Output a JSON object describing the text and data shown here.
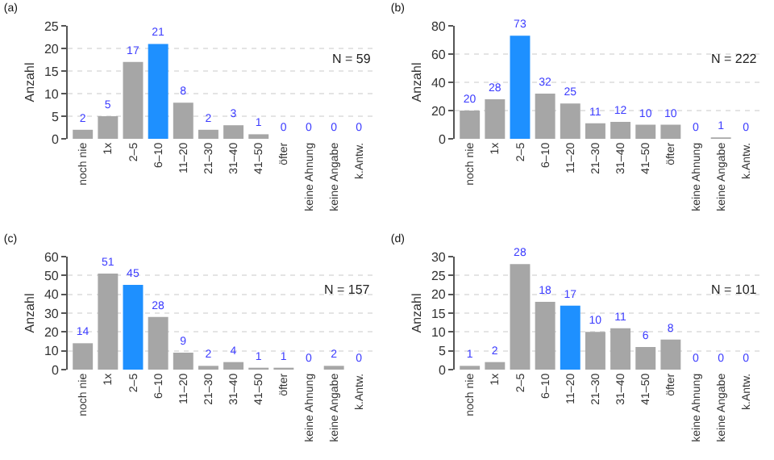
{
  "chart_data": [
    {
      "type": "bar",
      "title": "(a)",
      "ylabel": "Anzahl",
      "categories": [
        "noch nie",
        "1x",
        "2–5",
        "6–10",
        "11–20",
        "21–30",
        "31–40",
        "41–50",
        "öfter",
        "keine Ahnung",
        "keine Angabe",
        "k.Antw."
      ],
      "values": [
        2,
        5,
        17,
        21,
        8,
        2,
        3,
        1,
        0,
        0,
        0,
        0
      ],
      "colors": [
        "#a6a6a6",
        "#a6a6a6",
        "#a6a6a6",
        "#1e90ff",
        "#a6a6a6",
        "#a6a6a6",
        "#a6a6a6",
        "#a6a6a6",
        "#a6a6a6",
        "#a6a6a6",
        "#a6a6a6",
        "#a6a6a6"
      ],
      "ylim": [
        0,
        25
      ],
      "yticks": [
        0,
        5,
        10,
        15,
        20,
        25
      ],
      "grid": "y",
      "data_labels": true,
      "annotations": [
        "N = 59"
      ]
    },
    {
      "type": "bar",
      "title": "(b)",
      "ylabel": "Anzahl",
      "categories": [
        "noch nie",
        "1x",
        "2–5",
        "6–10",
        "11–20",
        "21–30",
        "31–40",
        "41–50",
        "öfter",
        "keine Ahnung",
        "keine Angabe",
        "k.Antw."
      ],
      "values": [
        20,
        28,
        73,
        32,
        25,
        11,
        12,
        10,
        10,
        0,
        1,
        0
      ],
      "colors": [
        "#a6a6a6",
        "#a6a6a6",
        "#1e90ff",
        "#a6a6a6",
        "#a6a6a6",
        "#a6a6a6",
        "#a6a6a6",
        "#a6a6a6",
        "#a6a6a6",
        "#a6a6a6",
        "#a6a6a6",
        "#a6a6a6"
      ],
      "ylim": [
        0,
        80
      ],
      "yticks": [
        0,
        20,
        40,
        60,
        80
      ],
      "grid": "y",
      "data_labels": true,
      "annotations": [
        "N = 222"
      ]
    },
    {
      "type": "bar",
      "title": "(c)",
      "ylabel": "Anzahl",
      "categories": [
        "noch nie",
        "1x",
        "2–5",
        "6–10",
        "11–20",
        "21–30",
        "31–40",
        "41–50",
        "öfter",
        "keine Ahnung",
        "keine Angabe",
        "k.Antw."
      ],
      "values": [
        14,
        51,
        45,
        28,
        9,
        2,
        4,
        1,
        1,
        0,
        2,
        0
      ],
      "colors": [
        "#a6a6a6",
        "#a6a6a6",
        "#1e90ff",
        "#a6a6a6",
        "#a6a6a6",
        "#a6a6a6",
        "#a6a6a6",
        "#a6a6a6",
        "#a6a6a6",
        "#a6a6a6",
        "#a6a6a6",
        "#a6a6a6"
      ],
      "ylim": [
        0,
        60
      ],
      "yticks": [
        0,
        10,
        20,
        30,
        40,
        50,
        60
      ],
      "grid": "y",
      "data_labels": true,
      "annotations": [
        "N = 157"
      ]
    },
    {
      "type": "bar",
      "title": "(d)",
      "ylabel": "Anzahl",
      "categories": [
        "noch nie",
        "1x",
        "2–5",
        "6–10",
        "11–20",
        "21–30",
        "31–40",
        "41–50",
        "öfter",
        "keine Ahnung",
        "keine Angabe",
        "k.Antw."
      ],
      "values": [
        1,
        2,
        28,
        18,
        17,
        10,
        11,
        6,
        8,
        0,
        0,
        0
      ],
      "colors": [
        "#a6a6a6",
        "#a6a6a6",
        "#a6a6a6",
        "#a6a6a6",
        "#1e90ff",
        "#a6a6a6",
        "#a6a6a6",
        "#a6a6a6",
        "#a6a6a6",
        "#a6a6a6",
        "#a6a6a6",
        "#a6a6a6"
      ],
      "ylim": [
        0,
        30
      ],
      "yticks": [
        0,
        5,
        10,
        15,
        20,
        25,
        30
      ],
      "grid": "y",
      "data_labels": true,
      "annotations": [
        "N = 101"
      ]
    }
  ]
}
